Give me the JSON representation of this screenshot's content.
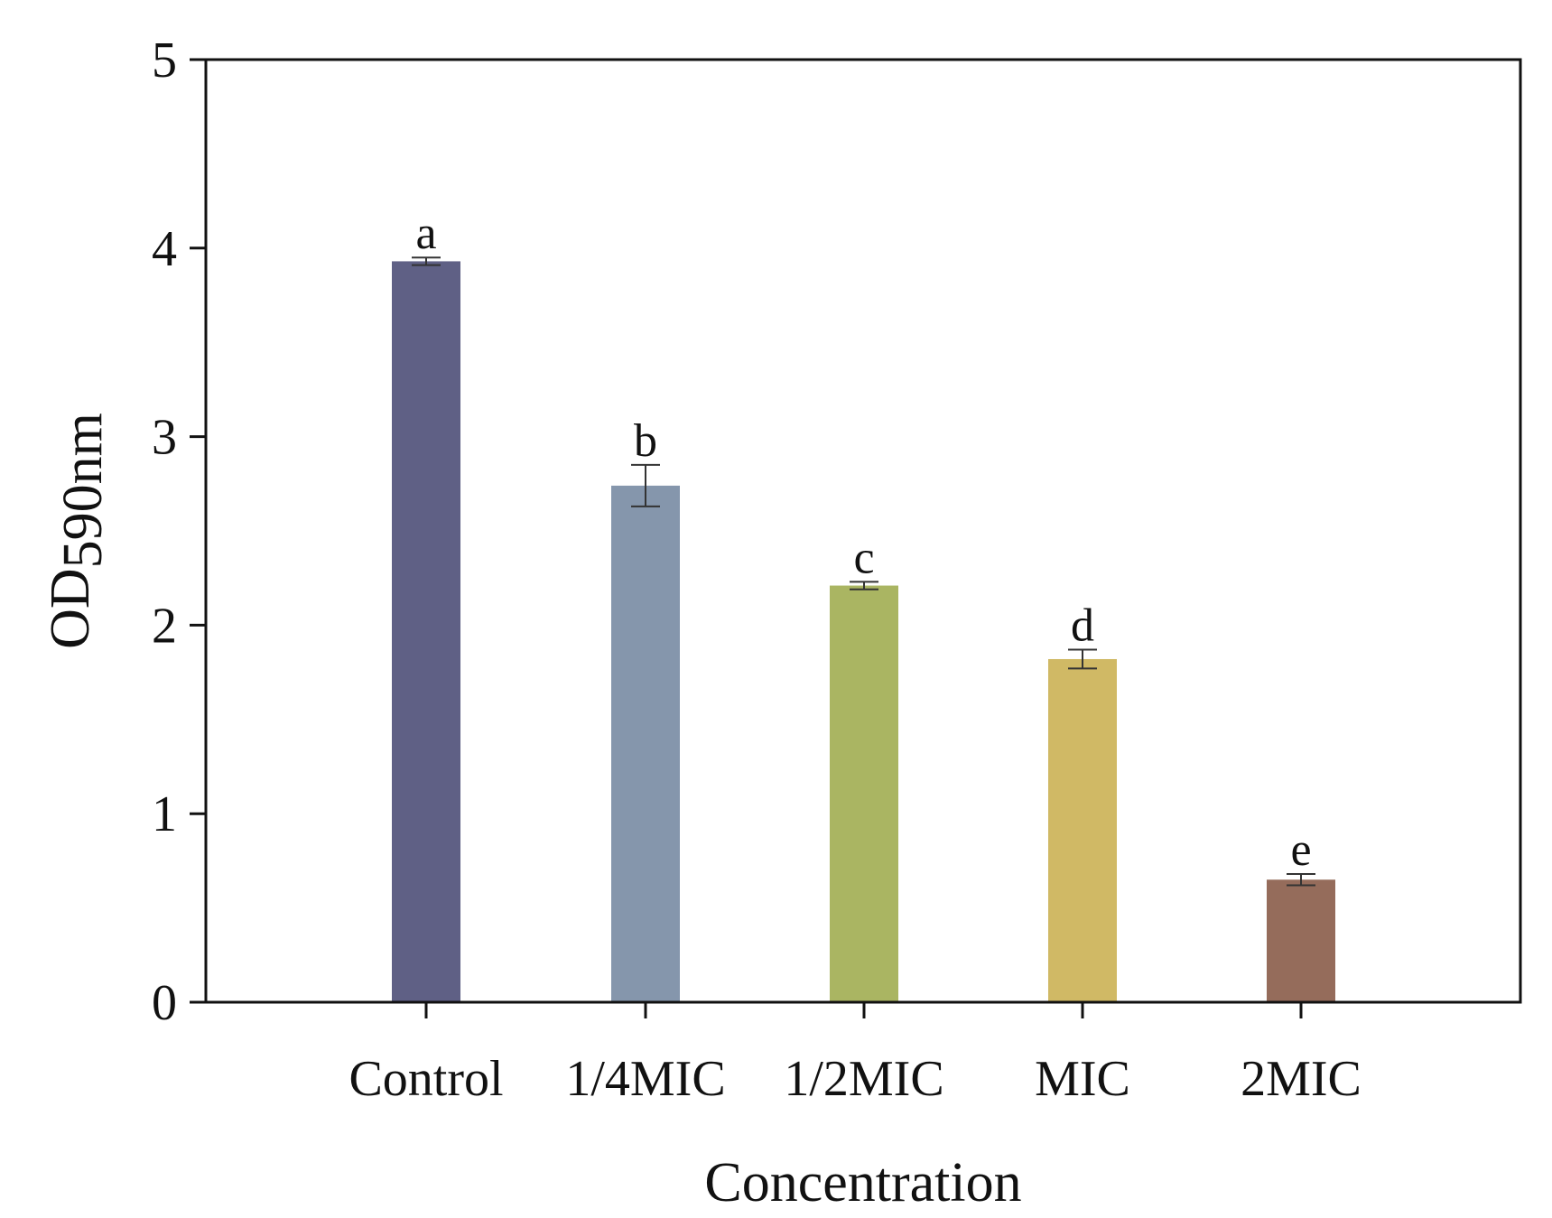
{
  "chart_data": {
    "type": "bar",
    "title": "",
    "xlabel": "Concentration",
    "ylabel": "OD590nm",
    "ylabel_main": "OD",
    "ylabel_sub": "590nm",
    "ylim": [
      0,
      5
    ],
    "yticks": [
      "0",
      "1",
      "2",
      "3",
      "4",
      "5"
    ],
    "grid": false,
    "categories": [
      "Control",
      "1/4MIC",
      "1/2MIC",
      "MIC",
      "2MIC"
    ],
    "values": [
      3.93,
      2.74,
      2.21,
      1.82,
      0.65
    ],
    "errors": [
      0.02,
      0.11,
      0.02,
      0.05,
      0.03
    ],
    "significance": [
      "a",
      "b",
      "c",
      "d",
      "e"
    ],
    "colors": [
      "#5f6085",
      "#8596ac",
      "#aab562",
      "#d0b965",
      "#956c5b"
    ]
  }
}
